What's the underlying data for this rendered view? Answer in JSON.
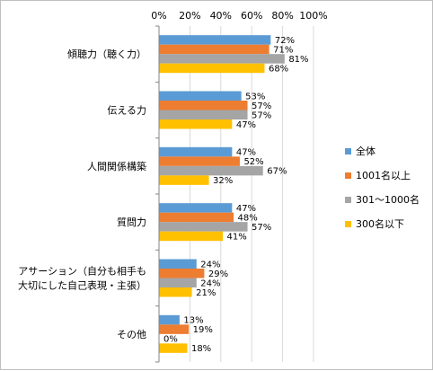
{
  "chart_data": {
    "type": "bar",
    "orientation": "horizontal",
    "categories": [
      [
        "傾聴力（聴く力）"
      ],
      [
        "伝える力"
      ],
      [
        "人間関係構築"
      ],
      [
        "質問力"
      ],
      [
        "アサーション（自分も相手も",
        "大切にした自己表現・主張）"
      ],
      [
        "その他"
      ]
    ],
    "series": [
      {
        "name": "全体",
        "color": "#5B9BD5",
        "values": [
          72,
          53,
          47,
          47,
          24,
          13
        ]
      },
      {
        "name": "1001名以上",
        "color": "#ED7D31",
        "values": [
          71,
          57,
          52,
          48,
          29,
          19
        ]
      },
      {
        "name": "301～1000名",
        "color": "#A5A5A5",
        "values": [
          81,
          57,
          67,
          57,
          24,
          0
        ]
      },
      {
        "name": "300名以下",
        "color": "#FFC000",
        "values": [
          68,
          47,
          32,
          41,
          21,
          18
        ]
      }
    ],
    "xlim": [
      0,
      100
    ],
    "xticks": [
      "0%",
      "20%",
      "40%",
      "60%",
      "80%",
      "100%"
    ],
    "value_suffix": "%",
    "grid": true,
    "legend_position": "right"
  }
}
